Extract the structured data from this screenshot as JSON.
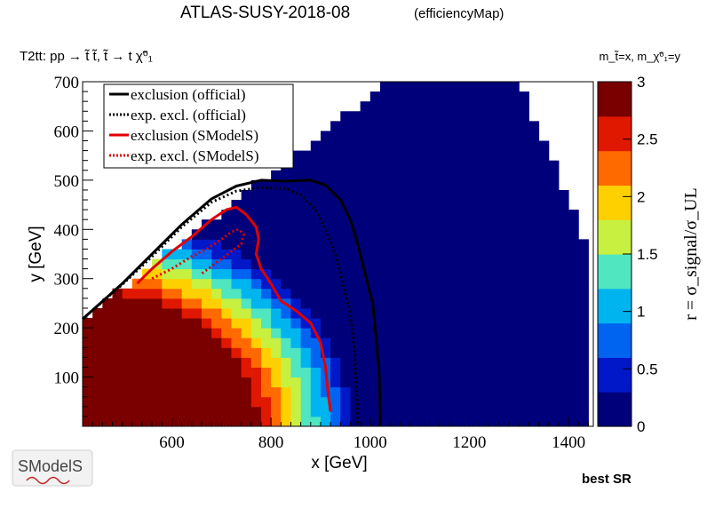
{
  "header": {
    "title": "ATLAS-SUSY-2018-08",
    "subtitle": "(efficiencyMap)",
    "process": "T2tt: pp → t̃ t̃, t̃ → t χ̃⁰₁",
    "mass_relation": "m_t̃=x, m_χ̃⁰₁=y"
  },
  "footer": {
    "logo_text": "SModelS",
    "best_sr": "best SR"
  },
  "chart_data": {
    "type": "heatmap",
    "xlabel": "x [GeV]",
    "ylabel": "y [GeV]",
    "zlabel": "r = σ_signal/σ_UL",
    "xlim": [
      420,
      1450
    ],
    "ylim": [
      0,
      700
    ],
    "zlim": [
      0,
      3
    ],
    "x_ticks": [
      600,
      800,
      1000,
      1200,
      1400
    ],
    "y_ticks": [
      100,
      200,
      300,
      400,
      500,
      600,
      700
    ],
    "z_ticks": [
      0,
      0.5,
      1,
      1.5,
      2,
      2.5,
      3
    ],
    "colormap": [
      "#00007a",
      "#0018c8",
      "#0064f0",
      "#00b4f0",
      "#4fe6c0",
      "#c8f040",
      "#ffd000",
      "#ff6a00",
      "#e01800",
      "#7a0000"
    ],
    "grid": false,
    "legend_position": "top-left",
    "legend": [
      {
        "label": "exclusion (official)",
        "color": "#000000",
        "style": "solid"
      },
      {
        "label": "exp. excl. (official)",
        "color": "#000000",
        "style": "dotted"
      },
      {
        "label": "exclusion (SModelS)",
        "color": "#e00000",
        "style": "solid"
      },
      {
        "label": "exp. excl. (SModelS)",
        "color": "#e00000",
        "style": "dotted"
      }
    ],
    "series": [
      {
        "name": "exclusion (official)",
        "points": [
          [
            420,
            218
          ],
          [
            500,
            290
          ],
          [
            560,
            350
          ],
          [
            620,
            410
          ],
          [
            680,
            462
          ],
          [
            730,
            488
          ],
          [
            780,
            500
          ],
          [
            830,
            498
          ],
          [
            880,
            500
          ],
          [
            910,
            490
          ],
          [
            940,
            460
          ],
          [
            960,
            420
          ],
          [
            975,
            370
          ],
          [
            990,
            310
          ],
          [
            1005,
            250
          ],
          [
            1012,
            180
          ],
          [
            1018,
            110
          ],
          [
            1020,
            40
          ],
          [
            1020,
            0
          ]
        ]
      },
      {
        "name": "exp. excl. (official)",
        "points": [
          [
            420,
            218
          ],
          [
            500,
            288
          ],
          [
            560,
            345
          ],
          [
            620,
            405
          ],
          [
            680,
            455
          ],
          [
            730,
            478
          ],
          [
            780,
            485
          ],
          [
            830,
            483
          ],
          [
            860,
            470
          ],
          [
            890,
            440
          ],
          [
            910,
            400
          ],
          [
            930,
            350
          ],
          [
            945,
            290
          ],
          [
            960,
            230
          ],
          [
            968,
            160
          ],
          [
            972,
            90
          ],
          [
            975,
            30
          ],
          [
            975,
            0
          ]
        ]
      },
      {
        "name": "exclusion (SModelS)",
        "points": [
          [
            530,
            290
          ],
          [
            560,
            320
          ],
          [
            600,
            355
          ],
          [
            640,
            385
          ],
          [
            680,
            420
          ],
          [
            710,
            440
          ],
          [
            730,
            445
          ],
          [
            750,
            430
          ],
          [
            770,
            405
          ],
          [
            775,
            380
          ],
          [
            770,
            350
          ],
          [
            780,
            320
          ],
          [
            800,
            290
          ],
          [
            820,
            255
          ],
          [
            850,
            235
          ],
          [
            880,
            210
          ],
          [
            900,
            170
          ],
          [
            910,
            120
          ],
          [
            915,
            70
          ],
          [
            920,
            30
          ]
        ]
      },
      {
        "name": "exp. excl. (SModelS)",
        "points": [
          [
            560,
            300
          ],
          [
            600,
            320
          ],
          [
            640,
            345
          ],
          [
            670,
            360
          ],
          [
            700,
            380
          ],
          [
            720,
            395
          ],
          [
            735,
            400
          ],
          [
            745,
            390
          ],
          [
            740,
            370
          ],
          [
            720,
            355
          ],
          [
            700,
            340
          ],
          [
            680,
            325
          ],
          [
            660,
            310
          ]
        ]
      }
    ]
  }
}
